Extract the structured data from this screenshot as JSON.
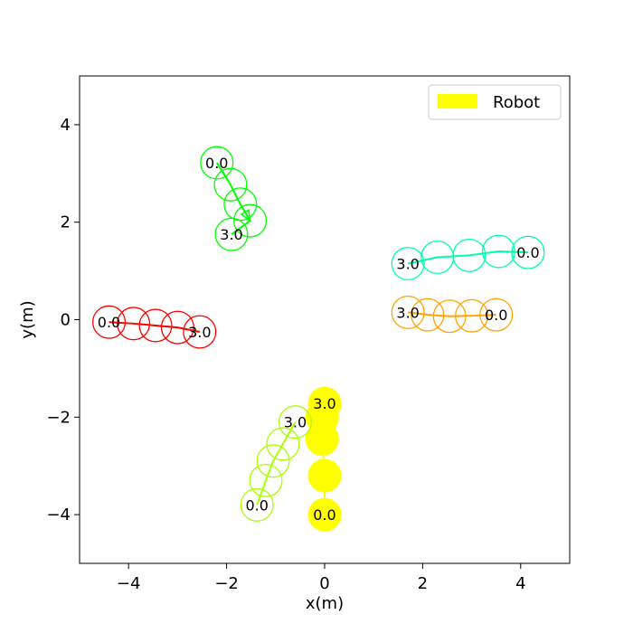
{
  "chart_data": {
    "type": "scatter",
    "title": "",
    "xlabel": "x(m)",
    "ylabel": "y(m)",
    "xlim": [
      -5,
      5
    ],
    "ylim": [
      -5,
      5
    ],
    "xticks": [
      -4,
      -2,
      0,
      2,
      4
    ],
    "yticks": [
      -4,
      -2,
      0,
      2,
      4
    ],
    "xtick_labels": [
      "−4",
      "−2",
      "0",
      "2",
      "4"
    ],
    "ytick_labels": [
      "−4",
      "−2",
      "0",
      "2",
      "4"
    ],
    "grid": false,
    "marker_radius": 0.33,
    "legend": {
      "placement": "top-right",
      "entries": [
        {
          "label": "Robot",
          "color": "#ffff00"
        }
      ]
    },
    "series": [
      {
        "name": "Robot",
        "color": "#ffff00",
        "filled": true,
        "points": [
          [
            0,
            -4.0
          ],
          [
            0,
            -3.2
          ],
          [
            -0.05,
            -2.45
          ],
          [
            -0.05,
            -2.0
          ],
          [
            0,
            -1.72
          ]
        ],
        "start_label": "0.0",
        "end_label": "3.0"
      },
      {
        "color": "#ff0000",
        "filled": false,
        "points": [
          [
            -4.4,
            -0.05
          ],
          [
            -3.9,
            -0.08
          ],
          [
            -3.45,
            -0.12
          ],
          [
            -3.0,
            -0.16
          ],
          [
            -2.55,
            -0.25
          ]
        ],
        "start_label": "0.0",
        "end_label": "3.0"
      },
      {
        "color": "#00ff00",
        "filled": false,
        "points": [
          [
            -2.2,
            3.22
          ],
          [
            -1.92,
            2.77
          ],
          [
            -1.72,
            2.37
          ],
          [
            -1.52,
            2.03
          ],
          [
            -1.9,
            1.75
          ]
        ],
        "start_label": "0.0",
        "end_label": "3.0",
        "arrow": true
      },
      {
        "color": "#00ffaa",
        "filled": false,
        "points": [
          [
            4.15,
            1.38
          ],
          [
            3.55,
            1.4
          ],
          [
            2.95,
            1.32
          ],
          [
            2.3,
            1.28
          ],
          [
            1.7,
            1.15
          ]
        ],
        "start_label": "0.0",
        "end_label": "3.0"
      },
      {
        "color": "#ffa500",
        "filled": false,
        "points": [
          [
            3.5,
            0.1
          ],
          [
            3.0,
            0.08
          ],
          [
            2.55,
            0.07
          ],
          [
            2.1,
            0.1
          ],
          [
            1.7,
            0.15
          ]
        ],
        "start_label": "0.0",
        "end_label": "3.0"
      },
      {
        "color": "#aaff00",
        "filled": false,
        "points": [
          [
            -1.38,
            -3.8
          ],
          [
            -1.2,
            -3.3
          ],
          [
            -1.05,
            -2.9
          ],
          [
            -0.85,
            -2.55
          ],
          [
            -0.6,
            -2.1
          ]
        ],
        "start_label": "0.0",
        "end_label": "3.0"
      }
    ]
  }
}
